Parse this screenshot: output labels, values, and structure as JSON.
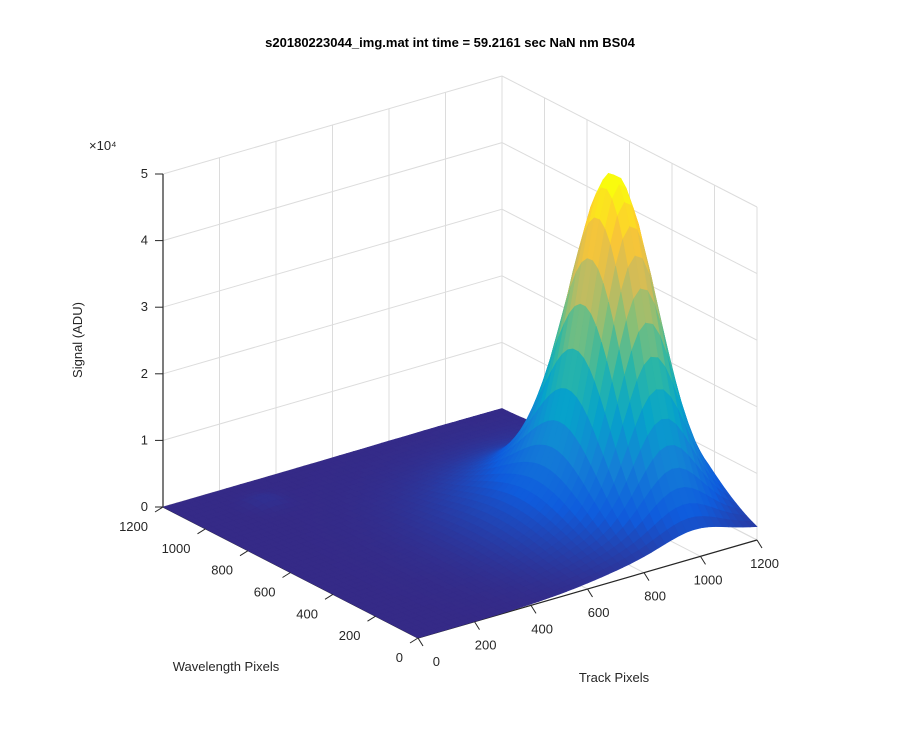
{
  "figure": {
    "title": "s20180223044_img.mat int time = 59.2161 sec  NaN nm BS04"
  },
  "chart_data": {
    "type": "surface",
    "title": "s20180223044_img.mat int time = 59.2161 sec  NaN nm BS04",
    "xlabel": "Track Pixels",
    "ylabel": "Wavelength Pixels",
    "zlabel": "Signal (ADU)",
    "z_exponent_label": "×10⁴",
    "xlim": [
      0,
      1200
    ],
    "ylim": [
      0,
      1200
    ],
    "zlim": [
      0,
      50000
    ],
    "x_ticks": [
      0,
      200,
      400,
      600,
      800,
      1000,
      1200
    ],
    "y_ticks": [
      0,
      200,
      400,
      600,
      800,
      1000,
      1200
    ],
    "z_ticks": [
      0,
      1,
      2,
      3,
      4,
      5
    ],
    "x_tick_labels": [
      "0",
      "200",
      "400",
      "600",
      "800",
      "1000",
      "1200"
    ],
    "y_tick_labels": [
      "0",
      "200",
      "400",
      "600",
      "800",
      "1000",
      "1200"
    ],
    "z_tick_labels": [
      "0",
      "1",
      "2",
      "3",
      "4",
      "5"
    ],
    "grid": true,
    "colormap": [
      "#352a87",
      "#0f5cdd",
      "#1481d6",
      "#06a4ca",
      "#2eb7a4",
      "#87bf77",
      "#d1bb59",
      "#fec832",
      "#f9fb0e"
    ],
    "peak": {
      "x": 980,
      "y": 380,
      "height": 45000,
      "ridge_width_y": 330,
      "ridge_width_x": 280
    },
    "secondary_bump": {
      "x": 250,
      "y": 1050,
      "height": 800
    }
  }
}
